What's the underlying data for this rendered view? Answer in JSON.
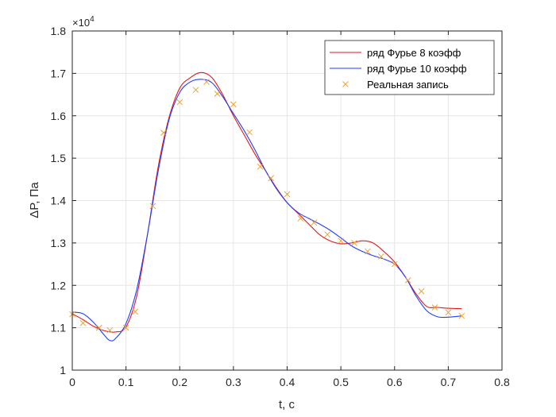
{
  "chart_data": {
    "type": "line",
    "xlabel": "t, c",
    "ylabel": "ΔP, Па",
    "y_exponent_label": "×10",
    "y_exponent_power": "4",
    "xlim": [
      0,
      0.8
    ],
    "ylim": [
      1.0,
      1.8
    ],
    "y_scale_note": "values in units of 10^4 Па",
    "grid": true,
    "legend_position": "top-right",
    "x_ticks": [
      "0",
      "0.1",
      "0.2",
      "0.3",
      "0.4",
      "0.5",
      "0.6",
      "0.7",
      "0.8"
    ],
    "y_ticks": [
      "1",
      "1.1",
      "1.2",
      "1.3",
      "1.4",
      "1.5",
      "1.6",
      "1.7",
      "1.8"
    ],
    "x_tick_values": [
      0,
      0.1,
      0.2,
      0.3,
      0.4,
      0.5,
      0.6,
      0.7,
      0.8
    ],
    "y_tick_values": [
      1.0,
      1.1,
      1.2,
      1.3,
      1.4,
      1.5,
      1.6,
      1.7,
      1.8
    ],
    "series": [
      {
        "name": "ряд Фурье 8 коэфф",
        "color": "#e31a1c",
        "style": "line",
        "x": [
          0,
          0.02,
          0.04,
          0.06,
          0.08,
          0.1,
          0.12,
          0.14,
          0.16,
          0.18,
          0.2,
          0.22,
          0.24,
          0.26,
          0.28,
          0.3,
          0.32,
          0.34,
          0.36,
          0.38,
          0.4,
          0.42,
          0.44,
          0.46,
          0.48,
          0.5,
          0.52,
          0.54,
          0.56,
          0.58,
          0.6,
          0.62,
          0.64,
          0.66,
          0.68,
          0.7,
          0.725
        ],
        "y": [
          1.133,
          1.119,
          1.103,
          1.093,
          1.09,
          1.102,
          1.175,
          1.32,
          1.48,
          1.595,
          1.665,
          1.69,
          1.702,
          1.69,
          1.65,
          1.6,
          1.555,
          1.51,
          1.47,
          1.43,
          1.395,
          1.37,
          1.345,
          1.32,
          1.305,
          1.298,
          1.3,
          1.305,
          1.3,
          1.28,
          1.255,
          1.22,
          1.18,
          1.15,
          1.148,
          1.146,
          1.145
        ]
      },
      {
        "name": "ряд Фурье 10 коэфф",
        "color": "#1f3fff",
        "style": "line",
        "x": [
          0,
          0.02,
          0.04,
          0.06,
          0.07,
          0.08,
          0.1,
          0.12,
          0.14,
          0.16,
          0.18,
          0.2,
          0.22,
          0.24,
          0.26,
          0.28,
          0.3,
          0.32,
          0.34,
          0.36,
          0.38,
          0.4,
          0.42,
          0.44,
          0.46,
          0.48,
          0.5,
          0.52,
          0.54,
          0.56,
          0.58,
          0.6,
          0.62,
          0.64,
          0.66,
          0.68,
          0.7,
          0.725
        ],
        "y": [
          1.137,
          1.133,
          1.112,
          1.082,
          1.07,
          1.074,
          1.11,
          1.19,
          1.32,
          1.47,
          1.59,
          1.655,
          1.68,
          1.686,
          1.678,
          1.645,
          1.605,
          1.565,
          1.52,
          1.47,
          1.428,
          1.395,
          1.372,
          1.358,
          1.345,
          1.33,
          1.312,
          1.293,
          1.28,
          1.27,
          1.262,
          1.25,
          1.22,
          1.175,
          1.14,
          1.126,
          1.125,
          1.128
        ]
      },
      {
        "name": "Реальная запись",
        "color": "#f0a030",
        "style": "marker-x",
        "x": [
          0.0,
          0.02,
          0.05,
          0.07,
          0.1,
          0.117,
          0.15,
          0.17,
          0.2,
          0.23,
          0.25,
          0.27,
          0.3,
          0.33,
          0.35,
          0.37,
          0.4,
          0.425,
          0.45,
          0.475,
          0.5,
          0.525,
          0.55,
          0.575,
          0.6,
          0.625,
          0.65,
          0.675,
          0.7,
          0.725
        ],
        "y": [
          1.132,
          1.111,
          1.1,
          1.094,
          1.1,
          1.138,
          1.387,
          1.56,
          1.632,
          1.661,
          1.68,
          1.652,
          1.627,
          1.561,
          1.48,
          1.453,
          1.415,
          1.358,
          1.348,
          1.32,
          1.305,
          1.3,
          1.28,
          1.268,
          1.25,
          1.212,
          1.186,
          1.148,
          1.136,
          1.128
        ]
      }
    ]
  }
}
